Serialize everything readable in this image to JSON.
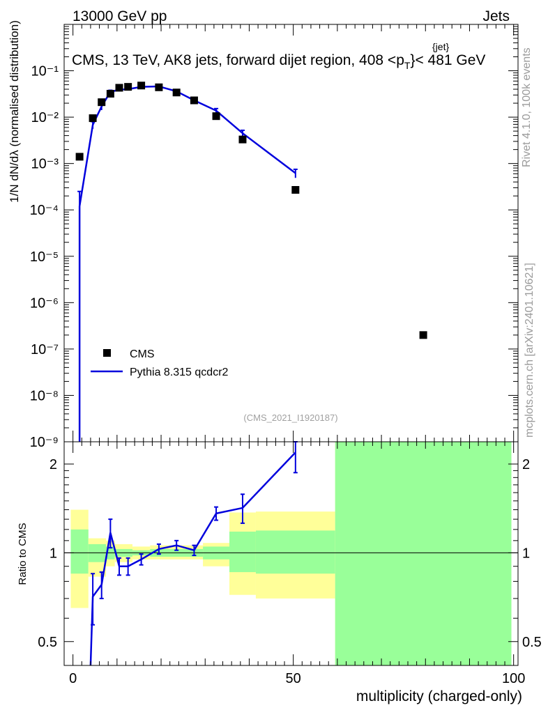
{
  "header": {
    "left": "13000 GeV pp",
    "right": "Jets"
  },
  "title": {
    "prefix": "CMS, 13 TeV, AK8 jets, forward dijet region, 408 <p",
    "sup": "{jet}",
    "sub": "T",
    "suffix": "}< 481 GeV"
  },
  "side_labels": {
    "rivet": "Rivet 4.1.0,  100k events",
    "mcplots": "mcplots.cern.ch [arXiv:2401.10621]"
  },
  "watermark": "(CMS_2021_I1920187)",
  "ylabel_top": "1/N dN/dλ (normalised distribution)",
  "ylabel_bottom": "Ratio to CMS",
  "xlabel": "multiplicity (charged-only)",
  "colors": {
    "mc": "#0000dd",
    "band_outer": "#ffff99",
    "band_inner": "#99ff99",
    "data": "#000000"
  },
  "chart_data": [
    {
      "type": "scatter",
      "panel": "main",
      "yscale": "log",
      "xlim": [
        -2,
        101
      ],
      "ylim": [
        1e-09,
        1
      ],
      "y_ticks": [
        "10⁻⁹",
        "10⁻⁸",
        "10⁻⁷",
        "10⁻⁶",
        "10⁻⁵",
        "10⁻⁴",
        "10⁻³",
        "10⁻²",
        "10⁻¹"
      ],
      "legend": {
        "position": "lower-left",
        "entries": [
          "CMS",
          "Pythia 8.315 qcdcr2"
        ]
      },
      "series": [
        {
          "name": "CMS",
          "kind": "markers",
          "x": [
            1.5,
            4.5,
            6.5,
            8.5,
            10.5,
            12.5,
            15.5,
            19.5,
            23.5,
            27.5,
            32.5,
            38.5,
            50.5,
            79.5
          ],
          "y": [
            0.0014,
            0.0095,
            0.021,
            0.032,
            0.043,
            0.045,
            0.048,
            0.044,
            0.034,
            0.023,
            0.0105,
            0.0033,
            0.00027,
            2e-07
          ]
        },
        {
          "name": "Pythia 8.315 qcdcr2",
          "kind": "line",
          "x": [
            1.5,
            4.5,
            6.5,
            8.5,
            10.5,
            12.5,
            15.5,
            19.5,
            23.5,
            27.5,
            32.5,
            38.5,
            50.5
          ],
          "y": [
            0.00012,
            0.0068,
            0.017,
            0.035,
            0.039,
            0.04,
            0.045,
            0.046,
            0.036,
            0.023,
            0.0138,
            0.0045,
            0.00062
          ],
          "err_lo": [
            0,
            0.0012,
            0.0028,
            0.003,
            0.002,
            0.002,
            0.002,
            0.002,
            0.002,
            0.0015,
            0.0015,
            0.0007,
            0.00013
          ],
          "err_hi": [
            0.00013,
            0.0012,
            0.0028,
            0.003,
            0.002,
            0.002,
            0.002,
            0.002,
            0.002,
            0.0015,
            0.0015,
            0.0007,
            0.00013
          ]
        }
      ]
    },
    {
      "type": "line",
      "panel": "ratio",
      "yscale": "log",
      "xlim": [
        -2,
        101
      ],
      "ylim": [
        0.415,
        2.38
      ],
      "y_ticks": [
        0.5,
        1,
        2
      ],
      "x_ticks": [
        0,
        50,
        100
      ],
      "bands": [
        {
          "x0": -0.5,
          "x1": 3.5,
          "lo": 0.65,
          "hi": 1.4,
          "inner_lo": 0.85,
          "inner_hi": 1.2
        },
        {
          "x0": 3.5,
          "x1": 7.5,
          "lo": 0.83,
          "hi": 1.12,
          "inner_lo": 0.93,
          "inner_hi": 1.07
        },
        {
          "x0": 7.5,
          "x1": 9.5,
          "lo": 0.9,
          "hi": 1.1,
          "inner_lo": 0.95,
          "inner_hi": 1.05
        },
        {
          "x0": 9.5,
          "x1": 13.5,
          "lo": 0.93,
          "hi": 1.07,
          "inner_lo": 0.97,
          "inner_hi": 1.03
        },
        {
          "x0": 13.5,
          "x1": 17.5,
          "lo": 0.95,
          "hi": 1.05,
          "inner_lo": 0.98,
          "inner_hi": 1.02
        },
        {
          "x0": 17.5,
          "x1": 29.5,
          "lo": 0.95,
          "hi": 1.06,
          "inner_lo": 0.97,
          "inner_hi": 1.03
        },
        {
          "x0": 29.5,
          "x1": 35.5,
          "lo": 0.9,
          "hi": 1.08,
          "inner_lo": 0.95,
          "inner_hi": 1.05
        },
        {
          "x0": 35.5,
          "x1": 41.5,
          "lo": 0.72,
          "hi": 1.37,
          "inner_lo": 0.86,
          "inner_hi": 1.18
        },
        {
          "x0": 41.5,
          "x1": 59.5,
          "lo": 0.7,
          "hi": 1.38,
          "inner_lo": 0.85,
          "inner_hi": 1.19
        },
        {
          "x0": 59.5,
          "x1": 99.5,
          "lo": 0.2,
          "hi": 3.0,
          "inner_lo": 0.2,
          "inner_hi": 3.0
        }
      ],
      "series": [
        {
          "name": "Pythia 8.315 qcdcr2",
          "x": [
            4.0,
            4.5,
            6.5,
            8.5,
            10.5,
            12.5,
            15.5,
            19.5,
            23.5,
            27.5,
            32.5,
            38.5,
            50.5
          ],
          "y": [
            0.41,
            0.71,
            0.78,
            1.17,
            0.9,
            0.9,
            0.95,
            1.03,
            1.06,
            1.02,
            1.36,
            1.42,
            2.19
          ],
          "err": [
            0,
            0.14,
            0.08,
            0.13,
            0.06,
            0.06,
            0.04,
            0.04,
            0.04,
            0.04,
            0.07,
            0.16,
            0.32
          ]
        }
      ]
    }
  ]
}
